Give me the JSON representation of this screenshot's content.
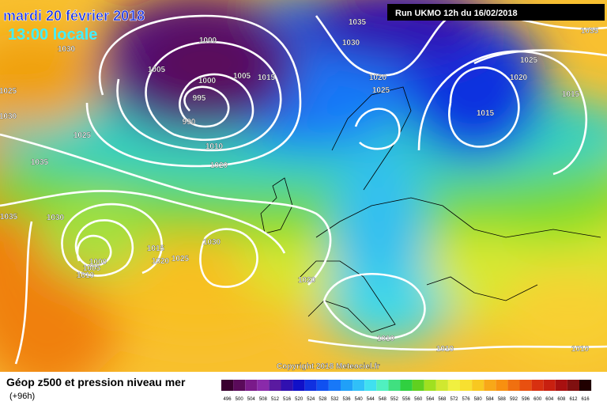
{
  "header": {
    "date": "mardi 20 février 2018",
    "time": "13:00 locale",
    "run": "Run UKMO 12h du 16/02/2018"
  },
  "footer": {
    "title": "Géop z500 et pression niveau mer",
    "lead": "(+96h)",
    "copyright": "Copyright 2018 Meteociel.fr"
  },
  "legend": {
    "values": [
      496,
      500,
      504,
      508,
      512,
      516,
      520,
      524,
      528,
      532,
      536,
      540,
      544,
      548,
      552,
      556,
      560,
      564,
      568,
      572,
      576,
      580,
      584,
      588,
      592,
      596,
      600,
      604,
      608,
      612,
      616
    ],
    "colors": [
      "#3a0030",
      "#5a0a5a",
      "#7a1a8a",
      "#8a2aaa",
      "#5a1aa0",
      "#3010b0",
      "#1010c8",
      "#1030e0",
      "#1050f0",
      "#1878f8",
      "#20a0f8",
      "#30c0f8",
      "#40e0f0",
      "#50f0c0",
      "#40e080",
      "#30d040",
      "#60d020",
      "#a0e020",
      "#d0e830",
      "#f0f040",
      "#f8e030",
      "#f8c820",
      "#f8a818",
      "#f89010",
      "#f07010",
      "#e85010",
      "#d83010",
      "#c82010",
      "#a81010",
      "#801010",
      "#200000"
    ]
  },
  "isobars": {
    "labels": [
      "1035",
      "1035",
      "1030",
      "1030",
      "1000",
      "1005",
      "1000",
      "1005",
      "1015",
      "995",
      "990",
      "1020",
      "1025",
      "1025",
      "1020",
      "1015",
      "1015",
      "1025",
      "1030",
      "1025",
      "1010",
      "1020",
      "1035",
      "1035",
      "1030",
      "1030",
      "1015",
      "1020",
      "1025",
      "1000",
      "1005",
      "1010",
      "1020",
      "1010",
      "1010",
      "1010"
    ]
  }
}
